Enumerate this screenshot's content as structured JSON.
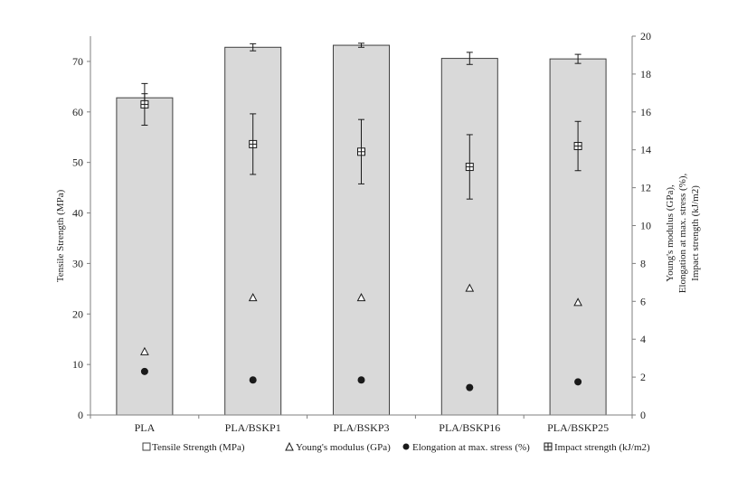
{
  "chart_data": {
    "type": "bar",
    "categories": [
      "PLA",
      "PLA/BSKP1",
      "PLA/BSKP3",
      "PLA/BSKP16",
      "PLA/BSKP25"
    ],
    "left_axis": {
      "label": "Tensile Strength (MPa)",
      "ylim": [
        0,
        75
      ],
      "ticks": [
        0,
        10,
        20,
        30,
        40,
        50,
        60,
        70
      ]
    },
    "right_axis": {
      "label_lines": [
        "Young's modulus (GPa),",
        "Elongation at max. stress (%),",
        "Impact strength (kJ/m2)"
      ],
      "ylim": [
        0,
        20
      ],
      "ticks": [
        0,
        2,
        4,
        6,
        8,
        10,
        12,
        14,
        16,
        18,
        20
      ]
    },
    "series": [
      {
        "name": "Tensile Strength (MPa)",
        "axis": "left",
        "kind": "bar",
        "values": [
          62.8,
          72.8,
          73.2,
          70.6,
          70.5
        ],
        "errors": [
          0.8,
          0.7,
          0.4,
          1.2,
          0.9
        ]
      },
      {
        "name": "Young's modulus (GPa)",
        "axis": "right",
        "kind": "triangle",
        "values": [
          3.35,
          6.2,
          6.2,
          6.7,
          5.95
        ],
        "errors": [
          0,
          0,
          0,
          0,
          0
        ]
      },
      {
        "name": "Elongation at max. stress (%)",
        "axis": "right",
        "kind": "circle",
        "values": [
          2.3,
          1.85,
          1.85,
          1.45,
          1.75
        ],
        "errors": [
          0,
          0,
          0,
          0,
          0
        ]
      },
      {
        "name": "Impact strength (kJ/m2)",
        "axis": "right",
        "kind": "gridsquare",
        "values": [
          16.4,
          14.3,
          13.9,
          13.1,
          14.2
        ],
        "errors": [
          1.1,
          1.6,
          1.7,
          1.7,
          1.3
        ]
      }
    ],
    "colors": {
      "bar_fill": "#d9d9d9",
      "bar_stroke": "#404040",
      "axis": "#7f7f7f",
      "marker": "#1a1a1a"
    }
  }
}
